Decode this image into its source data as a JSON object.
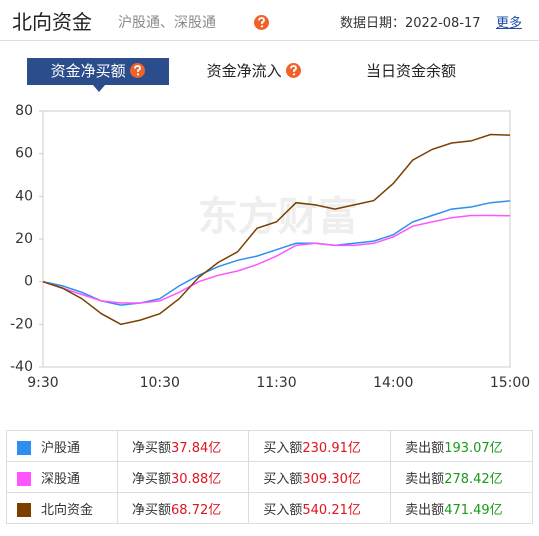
{
  "header": {
    "title": "北向资金",
    "subtitle": "沪股通、深股通",
    "date_label": "数据日期：2022-08-17",
    "more": "更多"
  },
  "tabs": [
    "资金净买额",
    "资金净流入",
    "当日资金余额"
  ],
  "chart_data": {
    "type": "line",
    "watermark": "东方财富",
    "categories": [
      "9:30",
      null,
      null,
      null,
      null,
      null,
      "10:30",
      null,
      null,
      null,
      null,
      null,
      "11:30",
      null,
      null,
      null,
      null,
      null,
      "14:00",
      null,
      null,
      null,
      null,
      null,
      "15:00"
    ],
    "ylim": [
      -40,
      80
    ],
    "yticks": [
      -40,
      -20,
      0,
      20,
      40,
      60,
      80
    ],
    "grid": false,
    "series": [
      {
        "name": "沪股通",
        "color": "#2e8ff0",
        "values": [
          0,
          -2,
          -5,
          -9,
          -11,
          -10,
          -8,
          -2,
          3,
          7,
          10,
          12,
          15,
          18,
          18,
          17,
          18,
          19,
          22,
          28,
          31,
          34,
          35,
          37,
          37.84
        ]
      },
      {
        "name": "深股通",
        "color": "#ff55ff",
        "values": [
          0,
          -3,
          -6,
          -9,
          -10,
          -10,
          -9,
          -5,
          0,
          3,
          5,
          8,
          12,
          17,
          18,
          17,
          17,
          18,
          21,
          26,
          28,
          30,
          31,
          31,
          30.88
        ]
      },
      {
        "name": "北向资金",
        "color": "#7b3f00",
        "values": [
          0,
          -3,
          -8,
          -15,
          -20,
          -18,
          -15,
          -8,
          2,
          9,
          14,
          25,
          28,
          37,
          36,
          34,
          36,
          38,
          46,
          57,
          62,
          65,
          66,
          69,
          68.72
        ]
      }
    ]
  },
  "table": {
    "rows": [
      {
        "net_label": "净买额",
        "net": "37.84亿",
        "buy_label": "买入额",
        "buy": "230.91亿",
        "sell_label": "卖出额",
        "sell": "193.07亿"
      },
      {
        "net_label": "净买额",
        "net": "30.88亿",
        "buy_label": "买入额",
        "buy": "309.30亿",
        "sell_label": "卖出额",
        "sell": "278.42亿"
      },
      {
        "net_label": "净买额",
        "net": "68.72亿",
        "buy_label": "买入额",
        "buy": "540.21亿",
        "sell_label": "卖出额",
        "sell": "471.49亿"
      }
    ]
  }
}
